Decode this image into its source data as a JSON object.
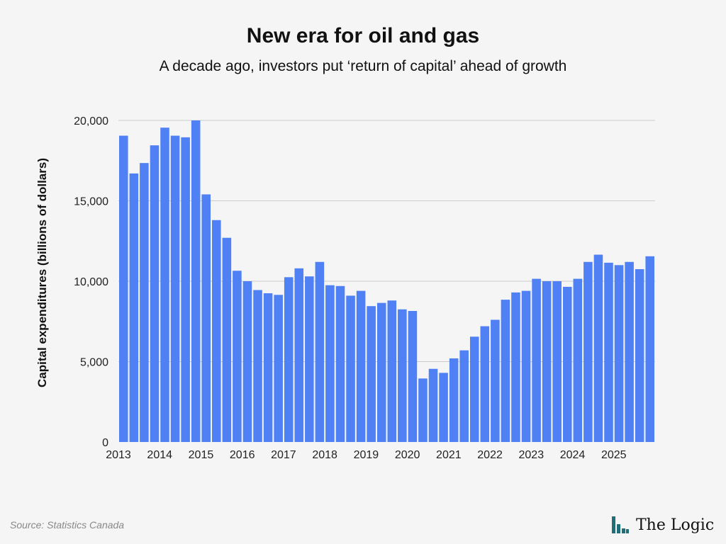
{
  "header": {
    "title": "New era for oil and gas",
    "subtitle": "A decade ago, investors put ‘return of capital’ ahead of growth"
  },
  "footer": {
    "source": "Source: Statistics Canada",
    "brand": "The Logic",
    "brand_icon": "the-logic-bars-icon"
  },
  "colors": {
    "bar": "#4f81f5",
    "grid": "#cccccc",
    "brand_mark": "#1f6f78"
  },
  "chart_data": {
    "type": "bar",
    "ylabel": "Capital expenditures (billions of dollars)",
    "xlabel": "",
    "ylim": [
      0,
      20000
    ],
    "yticks": [
      0,
      5000,
      10000,
      15000,
      20000
    ],
    "ytick_labels": [
      "0",
      "5,000",
      "10,000",
      "15,000",
      "20,000"
    ],
    "x_tick_labels": [
      "2013",
      "2014",
      "2015",
      "2016",
      "2017",
      "2018",
      "2019",
      "2020",
      "2021",
      "2022",
      "2023",
      "2024",
      "2025"
    ],
    "grid": true,
    "legend": "none",
    "categories": [
      "2013 Q1",
      "2013 Q2",
      "2013 Q3",
      "2013 Q4",
      "2014 Q1",
      "2014 Q2",
      "2014 Q3",
      "2014 Q4",
      "2015 Q1",
      "2015 Q2",
      "2015 Q3",
      "2015 Q4",
      "2016 Q1",
      "2016 Q2",
      "2016 Q3",
      "2016 Q4",
      "2017 Q1",
      "2017 Q2",
      "2017 Q3",
      "2017 Q4",
      "2018 Q1",
      "2018 Q2",
      "2018 Q3",
      "2018 Q4",
      "2019 Q1",
      "2019 Q2",
      "2019 Q3",
      "2019 Q4",
      "2020 Q1",
      "2020 Q2",
      "2020 Q3",
      "2020 Q4",
      "2021 Q1",
      "2021 Q2",
      "2021 Q3",
      "2021 Q4",
      "2022 Q1",
      "2022 Q2",
      "2022 Q3",
      "2022 Q4",
      "2023 Q1",
      "2023 Q2",
      "2023 Q3",
      "2023 Q4",
      "2024 Q1",
      "2024 Q2",
      "2024 Q3",
      "2024 Q4",
      "2025 Q1",
      "2025 Q2",
      "2025 Q3",
      "2025 Q4"
    ],
    "values": [
      19050,
      16700,
      17350,
      18450,
      19550,
      19050,
      18950,
      20000,
      15400,
      13800,
      12700,
      10650,
      10000,
      9450,
      9250,
      9150,
      10250,
      10800,
      10300,
      11200,
      9750,
      9700,
      9100,
      9400,
      8450,
      8650,
      8800,
      8250,
      8150,
      3950,
      4550,
      4300,
      5200,
      5700,
      6550,
      7200,
      7600,
      8850,
      9300,
      9400,
      10150,
      10000,
      10000,
      9650,
      10150,
      11200,
      11650,
      11150,
      11000,
      11200,
      10750,
      11550
    ]
  }
}
